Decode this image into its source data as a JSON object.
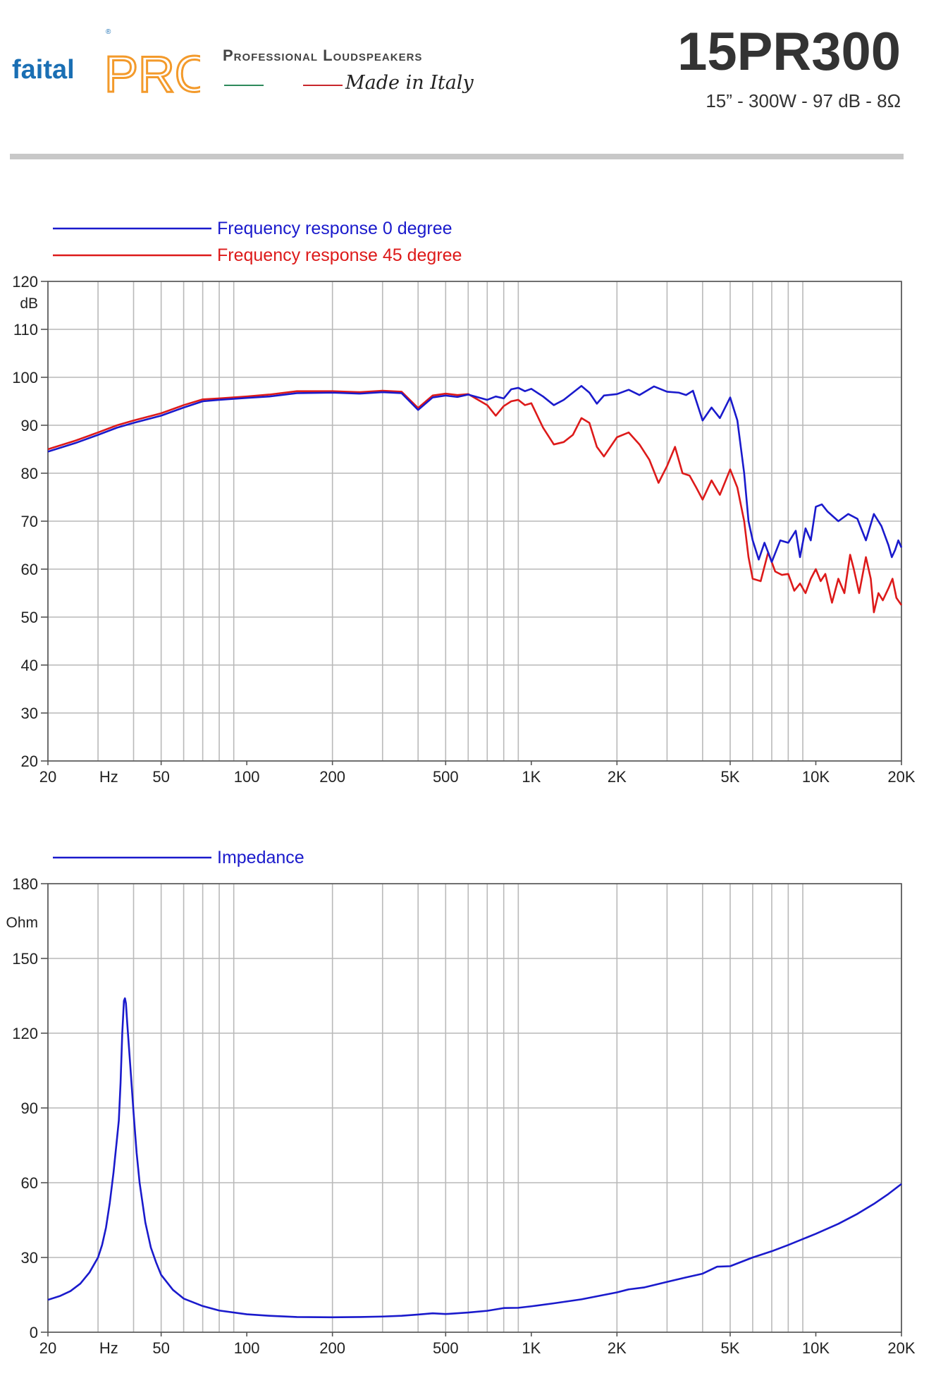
{
  "header": {
    "brand_logo": "faital PRO",
    "tagline": "Professional Loudspeakers",
    "made_in": "Made in Italy",
    "model": "15PR300",
    "specs": "15” - 300W - 97 dB - 8Ω"
  },
  "colors": {
    "blue": "#1a1acc",
    "red": "#dd1a1a",
    "grid": "#b9b9b9",
    "logo_blue": "#1a6fb4",
    "logo_orange": "#f39a2b"
  },
  "chart_data": [
    {
      "type": "line",
      "x_scale": "log",
      "xlim": [
        20,
        20000
      ],
      "ylim": [
        20,
        120
      ],
      "ylabel": "dB",
      "x_unit_label": "Hz",
      "x_ticks": [
        20,
        50,
        100,
        200,
        500,
        1000,
        2000,
        5000,
        10000,
        20000
      ],
      "x_tick_labels": [
        "20",
        "50",
        "100",
        "200",
        "500",
        "1K",
        "2K",
        "5K",
        "10K",
        "20K"
      ],
      "y_ticks": [
        20,
        30,
        40,
        50,
        60,
        70,
        80,
        90,
        100,
        110,
        120
      ],
      "y_tick_labels": [
        "20",
        "30",
        "40",
        "50",
        "60",
        "70",
        "80",
        "90",
        "100",
        "110",
        "120"
      ],
      "grid": true,
      "legend_position": "top-left",
      "series": [
        {
          "name": "Frequency response 0 degree",
          "color": "#1a1acc",
          "points": [
            [
              20,
              84.5
            ],
            [
              25,
              86.3
            ],
            [
              30,
              88
            ],
            [
              35,
              89.5
            ],
            [
              40,
              90.5
            ],
            [
              50,
              92
            ],
            [
              60,
              93.7
            ],
            [
              70,
              95
            ],
            [
              80,
              95.3
            ],
            [
              100,
              95.7
            ],
            [
              120,
              96
            ],
            [
              150,
              96.7
            ],
            [
              200,
              96.8
            ],
            [
              250,
              96.6
            ],
            [
              300,
              96.9
            ],
            [
              350,
              96.7
            ],
            [
              400,
              93.2
            ],
            [
              450,
              95.8
            ],
            [
              500,
              96.2
            ],
            [
              550,
              95.9
            ],
            [
              600,
              96.4
            ],
            [
              700,
              95.3
            ],
            [
              750,
              96
            ],
            [
              800,
              95.6
            ],
            [
              850,
              97.5
            ],
            [
              900,
              97.8
            ],
            [
              950,
              97.1
            ],
            [
              1000,
              97.6
            ],
            [
              1100,
              96
            ],
            [
              1200,
              94.2
            ],
            [
              1300,
              95.3
            ],
            [
              1400,
              96.8
            ],
            [
              1500,
              98.2
            ],
            [
              1600,
              96.8
            ],
            [
              1700,
              94.5
            ],
            [
              1800,
              96.2
            ],
            [
              2000,
              96.5
            ],
            [
              2200,
              97.4
            ],
            [
              2400,
              96.3
            ],
            [
              2700,
              98.1
            ],
            [
              3000,
              97
            ],
            [
              3300,
              96.8
            ],
            [
              3500,
              96.3
            ],
            [
              3700,
              97.2
            ],
            [
              4000,
              91
            ],
            [
              4300,
              93.7
            ],
            [
              4600,
              91.5
            ],
            [
              5000,
              95.8
            ],
            [
              5300,
              91
            ],
            [
              5600,
              80
            ],
            [
              5800,
              70
            ],
            [
              6000,
              66
            ],
            [
              6300,
              62
            ],
            [
              6600,
              65.5
            ],
            [
              7000,
              61.5
            ],
            [
              7500,
              66
            ],
            [
              8000,
              65.5
            ],
            [
              8500,
              68
            ],
            [
              8800,
              62.5
            ],
            [
              9200,
              68.5
            ],
            [
              9600,
              66
            ],
            [
              10000,
              73
            ],
            [
              10500,
              73.5
            ],
            [
              11000,
              72
            ],
            [
              12000,
              70
            ],
            [
              13000,
              71.5
            ],
            [
              14000,
              70.5
            ],
            [
              15000,
              66
            ],
            [
              16000,
              71.5
            ],
            [
              17000,
              69
            ],
            [
              18000,
              65
            ],
            [
              18500,
              62.5
            ],
            [
              19000,
              64
            ],
            [
              19500,
              66
            ],
            [
              20000,
              64.5
            ]
          ]
        },
        {
          "name": "Frequency response 45 degree",
          "color": "#dd1a1a",
          "points": [
            [
              20,
              85
            ],
            [
              25,
              86.8
            ],
            [
              30,
              88.5
            ],
            [
              35,
              90
            ],
            [
              40,
              91
            ],
            [
              50,
              92.5
            ],
            [
              60,
              94.2
            ],
            [
              70,
              95.4
            ],
            [
              80,
              95.6
            ],
            [
              100,
              96
            ],
            [
              120,
              96.4
            ],
            [
              150,
              97.1
            ],
            [
              200,
              97.1
            ],
            [
              250,
              96.9
            ],
            [
              300,
              97.2
            ],
            [
              350,
              97
            ],
            [
              400,
              93.6
            ],
            [
              450,
              96.2
            ],
            [
              500,
              96.6
            ],
            [
              550,
              96.3
            ],
            [
              600,
              96.5
            ],
            [
              700,
              94.2
            ],
            [
              750,
              92
            ],
            [
              800,
              94
            ],
            [
              850,
              95
            ],
            [
              900,
              95.3
            ],
            [
              950,
              94.2
            ],
            [
              1000,
              94.6
            ],
            [
              1100,
              89.5
            ],
            [
              1200,
              86
            ],
            [
              1300,
              86.5
            ],
            [
              1400,
              88
            ],
            [
              1500,
              91.5
            ],
            [
              1600,
              90.5
            ],
            [
              1700,
              85.5
            ],
            [
              1800,
              83.5
            ],
            [
              2000,
              87.5
            ],
            [
              2200,
              88.5
            ],
            [
              2400,
              86
            ],
            [
              2600,
              82.8
            ],
            [
              2800,
              78
            ],
            [
              3000,
              81.5
            ],
            [
              3200,
              85.5
            ],
            [
              3400,
              80
            ],
            [
              3600,
              79.5
            ],
            [
              3800,
              77
            ],
            [
              4000,
              74.5
            ],
            [
              4300,
              78.5
            ],
            [
              4600,
              75.5
            ],
            [
              5000,
              80.8
            ],
            [
              5300,
              77
            ],
            [
              5600,
              70
            ],
            [
              5800,
              62.5
            ],
            [
              6000,
              58
            ],
            [
              6400,
              57.5
            ],
            [
              6800,
              63.5
            ],
            [
              7200,
              59.5
            ],
            [
              7600,
              58.8
            ],
            [
              8000,
              59
            ],
            [
              8400,
              55.5
            ],
            [
              8800,
              57
            ],
            [
              9200,
              55
            ],
            [
              9600,
              58
            ],
            [
              10000,
              60
            ],
            [
              10400,
              57.5
            ],
            [
              10800,
              59
            ],
            [
              11400,
              53
            ],
            [
              12000,
              58
            ],
            [
              12600,
              55
            ],
            [
              13200,
              63
            ],
            [
              13600,
              60
            ],
            [
              14200,
              55
            ],
            [
              15000,
              62.5
            ],
            [
              15600,
              58
            ],
            [
              16000,
              51
            ],
            [
              16600,
              55
            ],
            [
              17200,
              53.5
            ],
            [
              18000,
              56
            ],
            [
              18600,
              58
            ],
            [
              19200,
              54
            ],
            [
              20000,
              52.5
            ]
          ]
        }
      ]
    },
    {
      "type": "line",
      "x_scale": "log",
      "xlim": [
        20,
        20000
      ],
      "ylim": [
        0,
        180
      ],
      "ylabel": "Ohm",
      "x_unit_label": "Hz",
      "x_ticks": [
        20,
        50,
        100,
        200,
        500,
        1000,
        2000,
        5000,
        10000,
        20000
      ],
      "x_tick_labels": [
        "20",
        "50",
        "100",
        "200",
        "500",
        "1K",
        "2K",
        "5K",
        "10K",
        "20K"
      ],
      "y_ticks": [
        0,
        30,
        60,
        90,
        120,
        150,
        180
      ],
      "y_tick_labels": [
        "0",
        "30",
        "60",
        "90",
        "120",
        "150",
        "180"
      ],
      "grid": true,
      "legend_position": "top-left",
      "series": [
        {
          "name": "Impedance",
          "color": "#1a1acc",
          "points": [
            [
              20,
              13
            ],
            [
              22,
              14.5
            ],
            [
              24,
              16.5
            ],
            [
              26,
              19.5
            ],
            [
              28,
              24
            ],
            [
              30,
              30
            ],
            [
              31,
              35
            ],
            [
              32,
              42
            ],
            [
              33,
              52
            ],
            [
              34,
              64
            ],
            [
              35,
              78
            ],
            [
              35.5,
              85
            ],
            [
              36,
              100
            ],
            [
              36.5,
              120
            ],
            [
              37,
              133
            ],
            [
              37.3,
              134
            ],
            [
              37.6,
              132
            ],
            [
              38,
              124
            ],
            [
              39,
              106
            ],
            [
              40,
              88
            ],
            [
              41,
              72
            ],
            [
              42,
              60
            ],
            [
              44,
              44
            ],
            [
              46,
              34
            ],
            [
              48,
              28
            ],
            [
              50,
              23
            ],
            [
              55,
              17
            ],
            [
              60,
              13.5
            ],
            [
              70,
              10.5
            ],
            [
              80,
              8.7
            ],
            [
              100,
              7.2
            ],
            [
              120,
              6.6
            ],
            [
              150,
              6.1
            ],
            [
              200,
              6
            ],
            [
              250,
              6.1
            ],
            [
              300,
              6.3
            ],
            [
              350,
              6.6
            ],
            [
              400,
              7.1
            ],
            [
              450,
              7.6
            ],
            [
              500,
              7.3
            ],
            [
              600,
              7.9
            ],
            [
              700,
              8.6
            ],
            [
              800,
              9.7
            ],
            [
              900,
              9.8
            ],
            [
              1000,
              10.4
            ],
            [
              1200,
              11.6
            ],
            [
              1500,
              13.2
            ],
            [
              2000,
              16
            ],
            [
              2200,
              17.2
            ],
            [
              2500,
              18
            ],
            [
              3000,
              20.2
            ],
            [
              3500,
              22
            ],
            [
              4000,
              23.5
            ],
            [
              4500,
              26.3
            ],
            [
              5000,
              26.5
            ],
            [
              6000,
              30
            ],
            [
              7000,
              32.5
            ],
            [
              8000,
              35
            ],
            [
              10000,
              39.5
            ],
            [
              12000,
              43.5
            ],
            [
              14000,
              47.5
            ],
            [
              16000,
              51.5
            ],
            [
              18000,
              55.5
            ],
            [
              20000,
              59.5
            ]
          ]
        }
      ]
    }
  ]
}
